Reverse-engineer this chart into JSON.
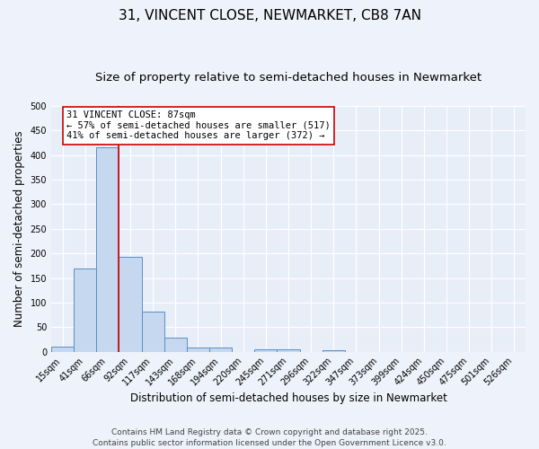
{
  "title_line1": "31, VINCENT CLOSE, NEWMARKET, CB8 7AN",
  "title_line2": "Size of property relative to semi-detached houses in Newmarket",
  "categories": [
    "15sqm",
    "41sqm",
    "66sqm",
    "92sqm",
    "117sqm",
    "143sqm",
    "168sqm",
    "194sqm",
    "220sqm",
    "245sqm",
    "271sqm",
    "296sqm",
    "322sqm",
    "347sqm",
    "373sqm",
    "399sqm",
    "424sqm",
    "450sqm",
    "475sqm",
    "501sqm",
    "526sqm"
  ],
  "values": [
    10,
    170,
    415,
    193,
    82,
    29,
    9,
    8,
    0,
    5,
    4,
    0,
    3,
    0,
    0,
    0,
    0,
    0,
    0,
    0,
    0
  ],
  "bar_color": "#c5d8f0",
  "bar_edge_color": "#5b8ec4",
  "xlabel": "Distribution of semi-detached houses by size in Newmarket",
  "ylabel": "Number of semi-detached properties",
  "ylim": [
    0,
    500
  ],
  "yticks": [
    0,
    50,
    100,
    150,
    200,
    250,
    300,
    350,
    400,
    450,
    500
  ],
  "bg_color": "#e8eef8",
  "fig_color": "#eef2fa",
  "grid_color": "#ffffff",
  "annotation_line1": "31 VINCENT CLOSE: 87sqm",
  "annotation_line2": "← 57% of semi-detached houses are smaller (517)",
  "annotation_line3": "41% of semi-detached houses are larger (372) →",
  "red_line_x": 2.5,
  "box_color": "#cc0000",
  "footer_text": "Contains HM Land Registry data © Crown copyright and database right 2025.\nContains public sector information licensed under the Open Government Licence v3.0.",
  "title_fontsize": 11,
  "subtitle_fontsize": 9.5,
  "label_fontsize": 8.5,
  "tick_fontsize": 7,
  "annot_fontsize": 7.5,
  "footer_fontsize": 6.5
}
